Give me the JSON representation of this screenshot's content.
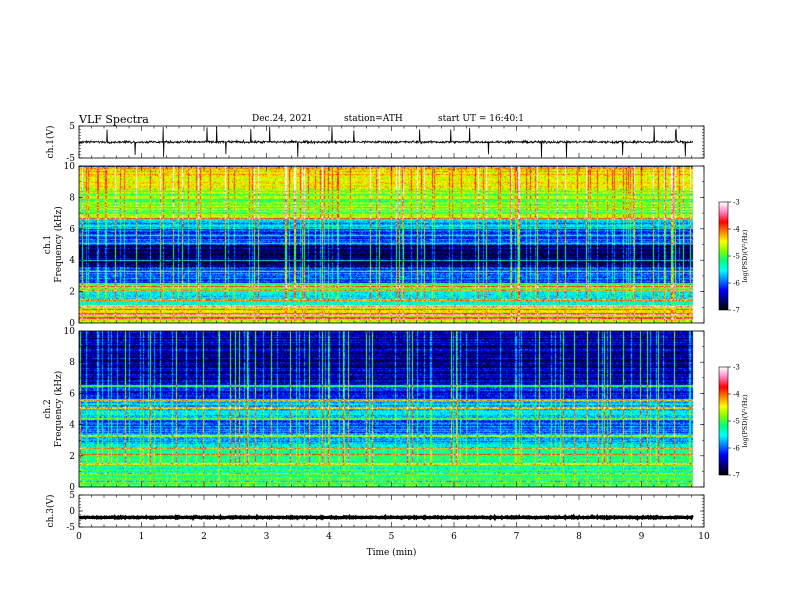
{
  "header": {
    "title": "VLF Spectra",
    "date": "Dec.24, 2021",
    "station": "station=ATH",
    "start": "start UT = 16:40:1"
  },
  "chart_data": [
    {
      "type": "line",
      "name": "ch1-waveform",
      "ylabel": "ch.1(V)",
      "ylim": [
        -5,
        5
      ],
      "ytick_labels": [
        "5",
        "-5"
      ],
      "xlim": [
        0,
        10
      ],
      "line_color": "#000000",
      "baseline": 0,
      "noise_amplitude": 0.6,
      "spike_times_min": [
        0.45,
        0.9,
        1.35,
        2.05,
        2.2,
        2.35,
        2.75,
        3.05,
        3.5,
        4.05,
        4.4,
        5.45,
        5.95,
        6.25,
        6.55,
        7.4,
        7.8,
        8.7,
        9.2,
        9.55,
        9.7
      ]
    },
    {
      "type": "heatmap",
      "name": "ch1-spectrogram",
      "ylabel": "ch.1 Frequency (kHz)",
      "ylim": [
        0,
        10
      ],
      "ytick_labels": [
        "0",
        "2",
        "4",
        "6",
        "8",
        "10"
      ],
      "xlim": [
        0,
        10
      ],
      "data_end_min": 9.82,
      "colorbar": {
        "label": "log(PSD)(V²/Hz)",
        "range": [
          -7,
          -3
        ],
        "tick_labels": [
          "-3",
          "-4",
          "-5",
          "-6",
          "-7"
        ]
      },
      "band_levels_log_psd": [
        {
          "f": [
            0.0,
            1.2
          ],
          "level": -4.6
        },
        {
          "f": [
            1.2,
            2.0
          ],
          "level": -5.4
        },
        {
          "f": [
            2.0,
            2.6
          ],
          "level": -5.1
        },
        {
          "f": [
            2.6,
            3.6
          ],
          "level": -6.1
        },
        {
          "f": [
            3.6,
            5.0
          ],
          "level": -6.7
        },
        {
          "f": [
            5.0,
            6.0
          ],
          "level": -6.1
        },
        {
          "f": [
            6.0,
            6.6
          ],
          "level": -5.7
        },
        {
          "f": [
            6.6,
            8.5
          ],
          "level": -4.9
        },
        {
          "f": [
            8.5,
            10.0
          ],
          "level": -4.4
        }
      ],
      "tone_lines_khz": [
        0.35,
        0.6,
        0.9,
        1.1,
        1.5,
        2.1,
        2.35,
        3.3,
        4.0,
        5.1,
        5.6,
        6.7
      ]
    },
    {
      "type": "heatmap",
      "name": "ch2-spectrogram",
      "ylabel": "ch.2 Frequency (kHz)",
      "ylim": [
        0,
        10
      ],
      "ytick_labels": [
        "0",
        "2",
        "4",
        "6",
        "8",
        "10"
      ],
      "xlim": [
        0,
        10
      ],
      "data_end_min": 9.82,
      "colorbar": {
        "label": "log(PSD)(V²/Hz)",
        "range": [
          -7,
          -3
        ],
        "tick_labels": [
          "-3",
          "-4",
          "-5",
          "-6",
          "-7"
        ]
      },
      "band_levels_log_psd": [
        {
          "f": [
            0.0,
            1.0
          ],
          "level": -5.1
        },
        {
          "f": [
            1.0,
            2.6
          ],
          "level": -5.3
        },
        {
          "f": [
            2.6,
            3.5
          ],
          "level": -5.7
        },
        {
          "f": [
            3.5,
            4.5
          ],
          "level": -6.0
        },
        {
          "f": [
            4.5,
            5.6
          ],
          "level": -5.6
        },
        {
          "f": [
            5.6,
            6.6
          ],
          "level": -6.3
        },
        {
          "f": [
            6.6,
            10.0
          ],
          "level": -6.5
        }
      ],
      "tone_lines_khz": [
        0.4,
        0.9,
        1.5,
        2.1,
        2.5,
        3.3,
        4.4,
        5.1,
        5.6,
        6.5
      ]
    },
    {
      "type": "line",
      "name": "ch3-waveform",
      "ylabel": "ch.3(V)",
      "ylim": [
        -5,
        5
      ],
      "ytick_labels": [
        "5",
        "0",
        "-5"
      ],
      "xlim": [
        0,
        10
      ],
      "line_color": "#000000",
      "baseline": -2.0,
      "noise_amplitude": 0.25
    }
  ],
  "time_axis": {
    "xlabel": "Time (min)",
    "xlim": [
      0,
      10
    ],
    "tick_labels": [
      "0",
      "1",
      "2",
      "3",
      "4",
      "5",
      "6",
      "7",
      "8",
      "9",
      "10"
    ]
  },
  "colormap": [
    "#000000",
    "#00007f",
    "#0000ff",
    "#0080ff",
    "#00ffff",
    "#00ff7f",
    "#80ff00",
    "#ffff00",
    "#ff8000",
    "#ff0000",
    "#ff80c0",
    "#ffffff"
  ]
}
